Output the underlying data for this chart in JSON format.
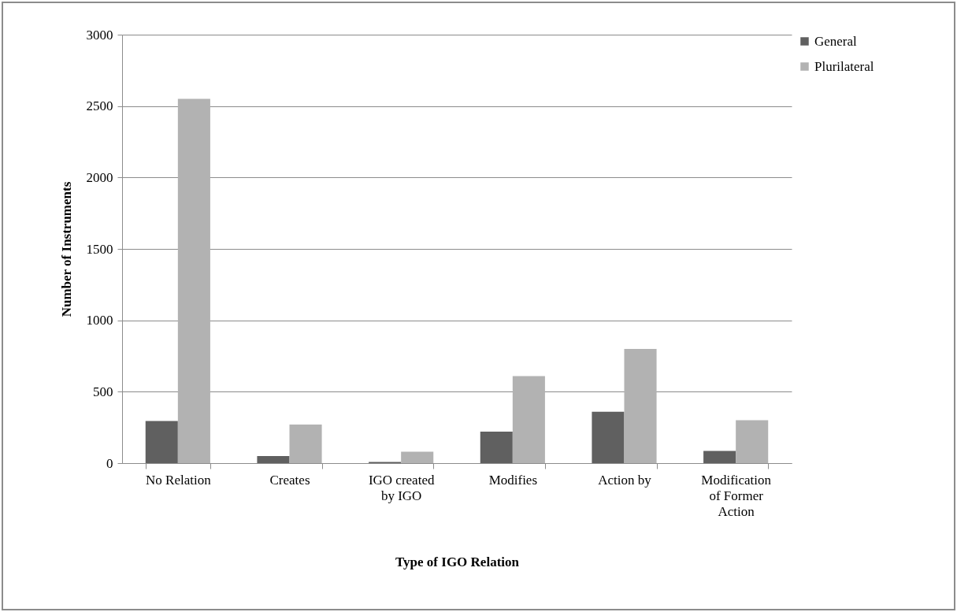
{
  "chart_data": {
    "type": "bar",
    "xlabel": "Type of IGO Relation",
    "ylabel": "Number of Instruments",
    "categories": [
      "No Relation",
      "Creates",
      "IGO created by IGO",
      "Modifies",
      "Action by",
      "Modification of Former Action"
    ],
    "series": [
      {
        "name": "General",
        "color": "#606060",
        "values": [
          295,
          50,
          8,
          220,
          360,
          85
        ]
      },
      {
        "name": "Plurilateral",
        "color": "#b2b2b2",
        "values": [
          2550,
          270,
          80,
          610,
          800,
          300
        ]
      }
    ],
    "ylim": [
      0,
      3000
    ],
    "yticks": [
      0,
      500,
      1000,
      1500,
      2000,
      2500,
      3000
    ],
    "grid": "y",
    "legend": "right"
  }
}
